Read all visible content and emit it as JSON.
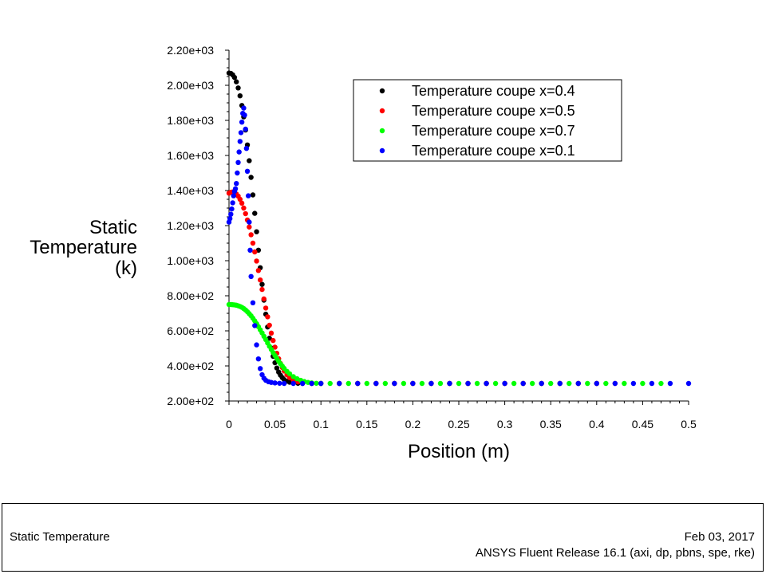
{
  "chart_data": {
    "type": "scatter",
    "ylabel_lines": [
      "Static",
      "Temperature",
      "(k)"
    ],
    "xlabel": "Position (m)",
    "x_ticks": [
      "0",
      "0.05",
      "0.1",
      "0.15",
      "0.2",
      "0.25",
      "0.3",
      "0.35",
      "0.4",
      "0.45",
      "0.5"
    ],
    "y_ticks": [
      "2.00e+02",
      "4.00e+02",
      "6.00e+02",
      "8.00e+02",
      "1.00e+03",
      "1.20e+03",
      "1.40e+03",
      "1.60e+03",
      "1.80e+03",
      "2.00e+03",
      "2.20e+03"
    ],
    "xlim": [
      0,
      0.5
    ],
    "ylim": [
      200,
      2200
    ],
    "legend_position": "top-right",
    "grid": false,
    "series": [
      {
        "name": "Temperature coupe x=0.4",
        "color": "#000000",
        "points": [
          [
            0,
            2070
          ],
          [
            0.002,
            2068
          ],
          [
            0.004,
            2060
          ],
          [
            0.006,
            2045
          ],
          [
            0.008,
            2020
          ],
          [
            0.01,
            1985
          ],
          [
            0.012,
            1940
          ],
          [
            0.014,
            1885
          ],
          [
            0.016,
            1820
          ],
          [
            0.018,
            1745
          ],
          [
            0.02,
            1660
          ],
          [
            0.022,
            1570
          ],
          [
            0.024,
            1475
          ],
          [
            0.026,
            1375
          ],
          [
            0.028,
            1270
          ],
          [
            0.03,
            1165
          ],
          [
            0.032,
            1060
          ],
          [
            0.034,
            960
          ],
          [
            0.036,
            865
          ],
          [
            0.038,
            775
          ],
          [
            0.04,
            695
          ],
          [
            0.042,
            622
          ],
          [
            0.044,
            558
          ],
          [
            0.046,
            502
          ],
          [
            0.048,
            455
          ],
          [
            0.05,
            418
          ],
          [
            0.052,
            388
          ],
          [
            0.054,
            365
          ],
          [
            0.056,
            347
          ],
          [
            0.058,
            333
          ],
          [
            0.06,
            322
          ],
          [
            0.063,
            313
          ],
          [
            0.066,
            307
          ],
          [
            0.07,
            303
          ],
          [
            0.075,
            301
          ],
          [
            0.08,
            300
          ],
          [
            0.09,
            300
          ],
          [
            0.1,
            300
          ],
          [
            0.12,
            300
          ],
          [
            0.14,
            300
          ],
          [
            0.16,
            300
          ],
          [
            0.18,
            300
          ],
          [
            0.2,
            300
          ],
          [
            0.22,
            300
          ],
          [
            0.24,
            300
          ],
          [
            0.26,
            300
          ],
          [
            0.28,
            300
          ],
          [
            0.3,
            300
          ],
          [
            0.32,
            300
          ],
          [
            0.34,
            300
          ],
          [
            0.36,
            300
          ],
          [
            0.38,
            300
          ],
          [
            0.4,
            300
          ]
        ]
      },
      {
        "name": "Temperature coupe x=0.5",
        "color": "#ff0000",
        "points": [
          [
            0,
            1385
          ],
          [
            0.002,
            1390
          ],
          [
            0.004,
            1392
          ],
          [
            0.006,
            1388
          ],
          [
            0.008,
            1380
          ],
          [
            0.01,
            1368
          ],
          [
            0.012,
            1350
          ],
          [
            0.014,
            1328
          ],
          [
            0.016,
            1300
          ],
          [
            0.018,
            1268
          ],
          [
            0.02,
            1232
          ],
          [
            0.022,
            1192
          ],
          [
            0.024,
            1148
          ],
          [
            0.026,
            1100
          ],
          [
            0.028,
            1050
          ],
          [
            0.03,
            998
          ],
          [
            0.032,
            944
          ],
          [
            0.034,
            890
          ],
          [
            0.036,
            836
          ],
          [
            0.038,
            782
          ],
          [
            0.04,
            730
          ],
          [
            0.042,
            680
          ],
          [
            0.044,
            632
          ],
          [
            0.046,
            587
          ],
          [
            0.048,
            545
          ],
          [
            0.05,
            507
          ],
          [
            0.052,
            472
          ],
          [
            0.054,
            441
          ],
          [
            0.056,
            414
          ],
          [
            0.058,
            391
          ],
          [
            0.06,
            371
          ],
          [
            0.063,
            349
          ],
          [
            0.066,
            333
          ],
          [
            0.07,
            319
          ],
          [
            0.075,
            309
          ],
          [
            0.08,
            304
          ],
          [
            0.09,
            301
          ],
          [
            0.1,
            300
          ],
          [
            0.12,
            300
          ],
          [
            0.14,
            300
          ],
          [
            0.16,
            300
          ],
          [
            0.18,
            300
          ],
          [
            0.2,
            300
          ],
          [
            0.22,
            300
          ],
          [
            0.24,
            300
          ],
          [
            0.26,
            300
          ],
          [
            0.28,
            300
          ],
          [
            0.3,
            300
          ],
          [
            0.32,
            300
          ],
          [
            0.34,
            300
          ],
          [
            0.36,
            300
          ],
          [
            0.38,
            300
          ],
          [
            0.4,
            300
          ],
          [
            0.42,
            300
          ]
        ]
      },
      {
        "name": "Temperature coupe x=0.7",
        "color": "#00ff00",
        "points": [
          [
            0,
            750
          ],
          [
            0.002,
            750
          ],
          [
            0.004,
            749
          ],
          [
            0.006,
            748
          ],
          [
            0.008,
            746
          ],
          [
            0.01,
            743
          ],
          [
            0.012,
            739
          ],
          [
            0.014,
            734
          ],
          [
            0.016,
            727
          ],
          [
            0.018,
            719
          ],
          [
            0.02,
            709
          ],
          [
            0.022,
            698
          ],
          [
            0.024,
            686
          ],
          [
            0.026,
            672
          ],
          [
            0.028,
            657
          ],
          [
            0.03,
            641
          ],
          [
            0.032,
            624
          ],
          [
            0.034,
            606
          ],
          [
            0.036,
            588
          ],
          [
            0.038,
            569
          ],
          [
            0.04,
            550
          ],
          [
            0.042,
            531
          ],
          [
            0.044,
            512
          ],
          [
            0.046,
            494
          ],
          [
            0.048,
            476
          ],
          [
            0.05,
            459
          ],
          [
            0.052,
            442
          ],
          [
            0.054,
            427
          ],
          [
            0.056,
            412
          ],
          [
            0.058,
            399
          ],
          [
            0.06,
            386
          ],
          [
            0.063,
            369
          ],
          [
            0.066,
            355
          ],
          [
            0.07,
            339
          ],
          [
            0.074,
            327
          ],
          [
            0.078,
            318
          ],
          [
            0.082,
            311
          ],
          [
            0.086,
            306
          ],
          [
            0.09,
            303
          ],
          [
            0.095,
            301
          ],
          [
            0.1,
            300
          ],
          [
            0.11,
            300
          ],
          [
            0.13,
            300
          ],
          [
            0.15,
            300
          ],
          [
            0.17,
            300
          ],
          [
            0.19,
            300
          ],
          [
            0.21,
            300
          ],
          [
            0.23,
            300
          ],
          [
            0.25,
            300
          ],
          [
            0.27,
            300
          ],
          [
            0.29,
            300
          ],
          [
            0.31,
            300
          ],
          [
            0.33,
            300
          ],
          [
            0.35,
            300
          ],
          [
            0.37,
            300
          ],
          [
            0.39,
            300
          ],
          [
            0.41,
            300
          ],
          [
            0.43,
            300
          ],
          [
            0.45,
            300
          ],
          [
            0.47,
            300
          ]
        ]
      },
      {
        "name": "Temperature coupe x=0.1",
        "color": "#0000ff",
        "points": [
          [
            0,
            1220
          ],
          [
            0.001,
            1240
          ],
          [
            0.002,
            1265
          ],
          [
            0.003,
            1295
          ],
          [
            0.004,
            1330
          ],
          [
            0.005,
            1370
          ],
          [
            0.006,
            1395
          ],
          [
            0.007,
            1410
          ],
          [
            0.008,
            1440
          ],
          [
            0.009,
            1500
          ],
          [
            0.01,
            1560
          ],
          [
            0.011,
            1620
          ],
          [
            0.012,
            1680
          ],
          [
            0.013,
            1730
          ],
          [
            0.014,
            1790
          ],
          [
            0.015,
            1840
          ],
          [
            0.016,
            1870
          ],
          [
            0.017,
            1830
          ],
          [
            0.018,
            1750
          ],
          [
            0.019,
            1640
          ],
          [
            0.02,
            1510
          ],
          [
            0.021,
            1370
          ],
          [
            0.022,
            1220
          ],
          [
            0.023,
            1060
          ],
          [
            0.024,
            910
          ],
          [
            0.026,
            760
          ],
          [
            0.028,
            630
          ],
          [
            0.03,
            520
          ],
          [
            0.032,
            440
          ],
          [
            0.034,
            385
          ],
          [
            0.036,
            350
          ],
          [
            0.038,
            330
          ],
          [
            0.04,
            318
          ],
          [
            0.043,
            310
          ],
          [
            0.046,
            306
          ],
          [
            0.05,
            303
          ],
          [
            0.055,
            301
          ],
          [
            0.06,
            300
          ],
          [
            0.07,
            300
          ],
          [
            0.08,
            300
          ],
          [
            0.09,
            300
          ],
          [
            0.1,
            300
          ],
          [
            0.12,
            300
          ],
          [
            0.14,
            300
          ],
          [
            0.16,
            300
          ],
          [
            0.18,
            300
          ],
          [
            0.2,
            300
          ],
          [
            0.22,
            300
          ],
          [
            0.24,
            300
          ],
          [
            0.26,
            300
          ],
          [
            0.28,
            300
          ],
          [
            0.3,
            300
          ],
          [
            0.32,
            300
          ],
          [
            0.34,
            300
          ],
          [
            0.36,
            300
          ],
          [
            0.38,
            300
          ],
          [
            0.4,
            300
          ],
          [
            0.42,
            300
          ],
          [
            0.44,
            300
          ],
          [
            0.46,
            300
          ],
          [
            0.48,
            300
          ],
          [
            0.5,
            300
          ]
        ]
      }
    ]
  },
  "footer": {
    "title": "Static Temperature",
    "date": "Feb 03, 2017",
    "release": "ANSYS Fluent Release 16.1 (axi, dp, pbns, spe, rke)"
  }
}
